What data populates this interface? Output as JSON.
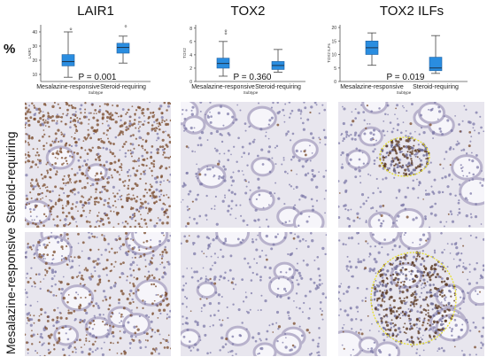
{
  "header": {
    "percent_label": "%"
  },
  "columns": [
    "LAIR1",
    "TOX2",
    "TOX2 ILFs"
  ],
  "rows": [
    "Steroid-requiring",
    "Mesalazine-responsive"
  ],
  "chart_data": [
    {
      "type": "box",
      "title": "LAIR1",
      "xlabel": "Subtype",
      "ylabel": "LAIR1",
      "categories": [
        "Mesalazine-responsive",
        "Steroid-requiring"
      ],
      "yticks": [
        10,
        20,
        30,
        40
      ],
      "ylim": [
        5,
        45
      ],
      "boxes": [
        {
          "min": 8,
          "q1": 16,
          "median": 19,
          "q3": 24,
          "max": 40,
          "outliers": [
            42
          ]
        },
        {
          "min": 18,
          "q1": 25,
          "median": 29,
          "q3": 32,
          "max": 37,
          "outliers": [
            44
          ]
        }
      ],
      "annotation": "P = 0.001",
      "colors": {
        "box": "#2a8de0",
        "whisker": "#444444"
      }
    },
    {
      "type": "box",
      "title": "TOX2",
      "xlabel": "Subtype",
      "ylabel": "TOX2",
      "categories": [
        "Mesalazine-responsive",
        "Steroid-requiring"
      ],
      "yticks": [
        0,
        2,
        4,
        6,
        8
      ],
      "ylim": [
        0,
        8.5
      ],
      "boxes": [
        {
          "min": 0.8,
          "q1": 2.0,
          "median": 2.7,
          "q3": 3.5,
          "max": 6.0,
          "outliers": [
            7.2,
            7.6
          ]
        },
        {
          "min": 1.4,
          "q1": 1.8,
          "median": 2.4,
          "q3": 3.0,
          "max": 4.8,
          "outliers": []
        }
      ],
      "annotation": "P = 0.360",
      "colors": {
        "box": "#2a8de0",
        "whisker": "#444444"
      }
    },
    {
      "type": "box",
      "title": "TOX2 ILFs",
      "xlabel": "Subtype",
      "ylabel": "TOX2 ILFs",
      "categories": [
        "Mesalazine-responsive",
        "Steroid-requiring"
      ],
      "yticks": [
        0,
        5,
        10,
        15,
        20
      ],
      "ylim": [
        0,
        21
      ],
      "boxes": [
        {
          "min": 6,
          "q1": 10,
          "median": 12.5,
          "q3": 15,
          "max": 18,
          "outliers": []
        },
        {
          "min": 3,
          "q1": 4,
          "median": 5,
          "q3": 9,
          "max": 17,
          "outliers": []
        }
      ],
      "annotation": "P = 0.019",
      "colors": {
        "box": "#2a8de0",
        "whisker": "#444444"
      }
    }
  ],
  "images": [
    {
      "row": "Steroid-requiring",
      "column": "LAIR1",
      "stain": "dense"
    },
    {
      "row": "Steroid-requiring",
      "column": "TOX2",
      "stain": "light"
    },
    {
      "row": "Steroid-requiring",
      "column": "TOX2 ILFs",
      "stain": "follicle"
    },
    {
      "row": "Mesalazine-responsive",
      "column": "LAIR1",
      "stain": "medium"
    },
    {
      "row": "Mesalazine-responsive",
      "column": "TOX2",
      "stain": "light"
    },
    {
      "row": "Mesalazine-responsive",
      "column": "TOX2 ILFs",
      "stain": "follicle-large"
    }
  ]
}
